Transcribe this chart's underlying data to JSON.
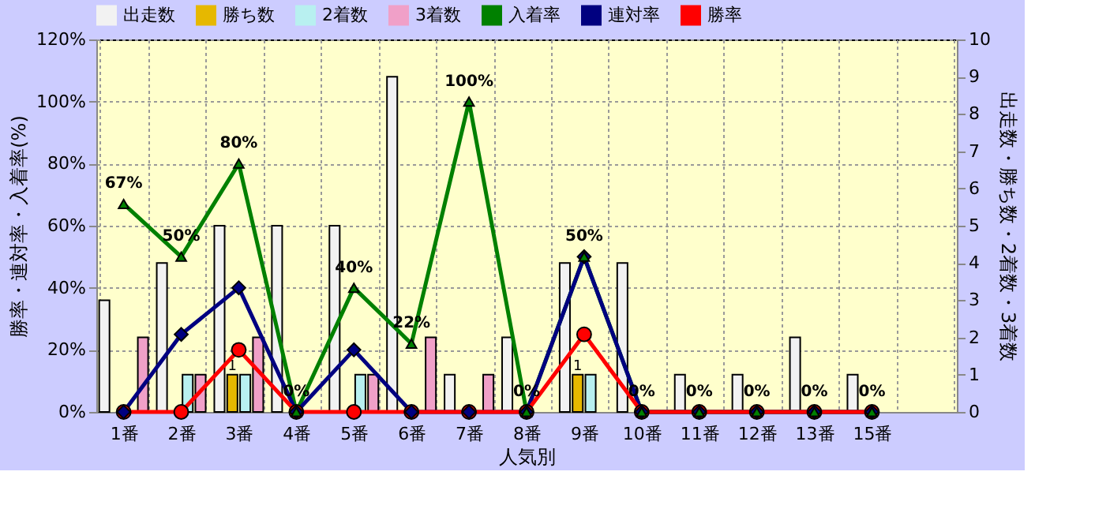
{
  "chart_data": {
    "type": "bar",
    "xlabel": "人気別",
    "ylabel": "勝率・連対率・入着率(%)",
    "y2label": "出走数・勝ち数・2着数・3着数",
    "categories": [
      "1番",
      "2番",
      "3番",
      "4番",
      "5番",
      "6番",
      "7番",
      "8番",
      "9番",
      "10番",
      "11番",
      "12番",
      "13番",
      "15番",
      null
    ],
    "series": [
      {
        "name": "出走数",
        "axis": "y2",
        "color": "#f2f2f2",
        "values": [
          3,
          4,
          5,
          5,
          5,
          9,
          1,
          2,
          4,
          4,
          1,
          1,
          2,
          1,
          null
        ]
      },
      {
        "name": "勝ち数",
        "axis": "y2",
        "color": "#e6b800",
        "values": [
          0,
          0,
          1,
          0,
          0,
          0,
          0,
          0,
          1,
          0,
          0,
          0,
          0,
          0,
          null
        ],
        "value_labels": [
          null,
          null,
          "1",
          null,
          null,
          null,
          null,
          null,
          "1",
          null,
          null,
          null,
          null,
          null,
          null
        ]
      },
      {
        "name": "2着数",
        "axis": "y2",
        "color": "#b8f0f0",
        "values": [
          0,
          1,
          1,
          0,
          1,
          0,
          0,
          0,
          1,
          0,
          0,
          0,
          0,
          0,
          null
        ]
      },
      {
        "name": "3着数",
        "axis": "y2",
        "color": "#f0a0c8",
        "values": [
          2,
          1,
          2,
          0,
          1,
          2,
          1,
          0,
          0,
          0,
          0,
          0,
          0,
          0,
          null
        ]
      },
      {
        "name": "入着率",
        "type": "line",
        "marker": "triangle",
        "line_style": "solid",
        "color": "#008000",
        "values": [
          67,
          50,
          80,
          0,
          40,
          22,
          100,
          0,
          50,
          0,
          0,
          0,
          0,
          0,
          null
        ],
        "value_labels": [
          "67%",
          "50%",
          "80%",
          "0%",
          "40%",
          "22%",
          "100%",
          "0%",
          "50%",
          "0%",
          "0%",
          "0%",
          "0%",
          "0%",
          null
        ]
      },
      {
        "name": "連対率",
        "type": "line",
        "marker": "diamond",
        "line_style": "solid",
        "color": "#000080",
        "values": [
          0,
          25,
          40,
          0,
          20,
          0,
          0,
          0,
          50,
          0,
          0,
          0,
          0,
          0,
          null
        ]
      },
      {
        "name": "勝率",
        "type": "line",
        "marker": "circle",
        "line_style": "solid",
        "color": "#ff0000",
        "values": [
          0,
          0,
          20,
          0,
          0,
          0,
          0,
          0,
          25,
          0,
          0,
          0,
          0,
          0,
          null
        ]
      }
    ],
    "ylim": [
      0,
      120
    ],
    "yticks": [
      {
        "value": 0,
        "label": "0%"
      },
      {
        "value": 20,
        "label": "20%"
      },
      {
        "value": 40,
        "label": "40%"
      },
      {
        "value": 60,
        "label": "60%"
      },
      {
        "value": 80,
        "label": "80%"
      },
      {
        "value": 100,
        "label": "100%"
      },
      {
        "value": 120,
        "label": "120%"
      }
    ],
    "y2lim": [
      0,
      10
    ],
    "y2ticks": [
      0,
      1,
      2,
      3,
      4,
      5,
      6,
      7,
      8,
      9,
      10
    ],
    "grid": true,
    "legend": "top"
  }
}
